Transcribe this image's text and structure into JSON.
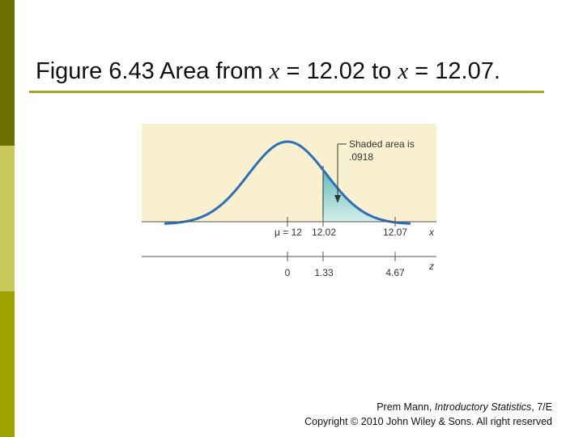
{
  "slide": {
    "title_prefix": "Figure 6.43 Area from ",
    "title_var1": "x",
    "title_mid": " = 12.02 to ",
    "title_var2": "x",
    "title_suffix": " = 12.07."
  },
  "figure": {
    "annotation_line1": "Shaded area is",
    "annotation_line2": ".0918",
    "x_axis": {
      "label": "x",
      "ticks": [
        "μ = 12",
        "12.02",
        "12.07"
      ]
    },
    "z_axis": {
      "label": "z",
      "ticks": [
        "0",
        "1.33",
        "4.67"
      ]
    },
    "colors": {
      "panel": "#f8f0cf",
      "curve": "#2e6fb5",
      "shade": "#8fd0cc"
    }
  },
  "footer": {
    "author": "Prem Mann, ",
    "book": "Introductory Statistics",
    "edition": ", 7/E",
    "copyright": "Copyright © 2010 John Wiley & Sons. All right reserved"
  }
}
